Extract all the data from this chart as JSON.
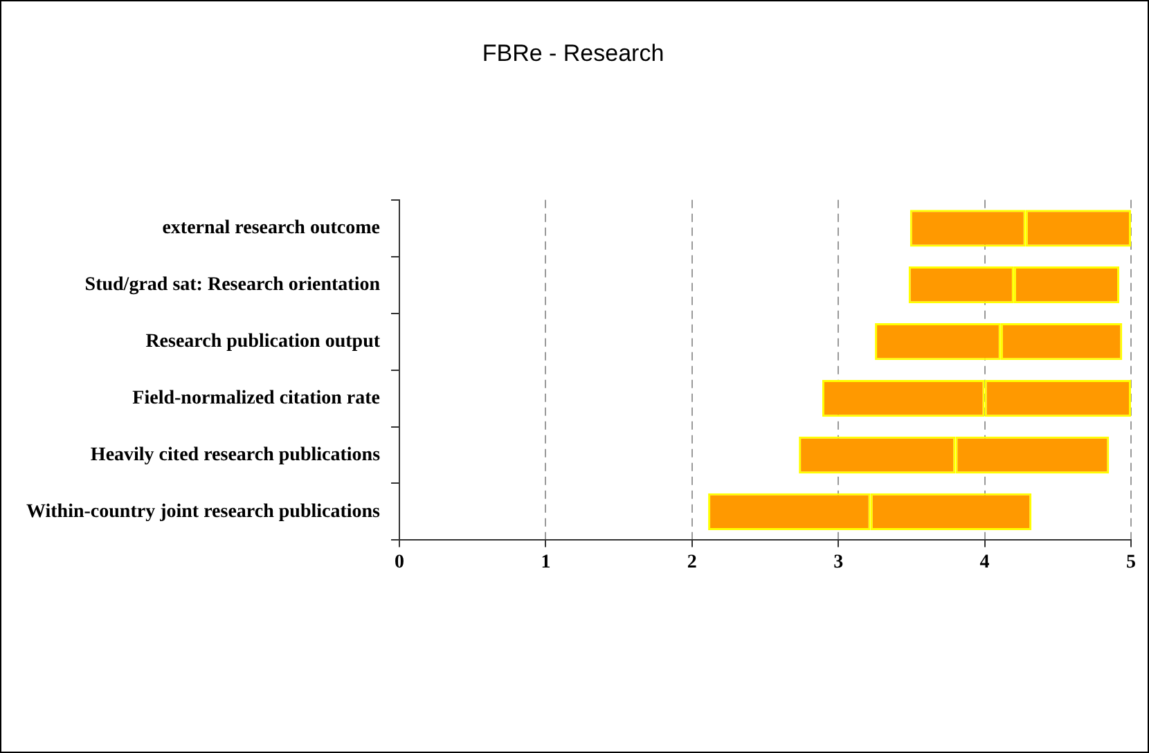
{
  "chart_data": {
    "type": "box",
    "orientation": "horizontal",
    "title": "FBRe - Research",
    "categories": [
      "external research outcome",
      "Stud/grad sat: Research orientation",
      "Research publication output",
      "Field-normalized citation rate",
      "Heavily cited research publications",
      "Within-country joint research publications"
    ],
    "series": [
      {
        "color": "#ffff00",
        "boxes": [
          {
            "low": 3.49,
            "q1": 3.49,
            "median": 4.28,
            "q3": 5.0,
            "high": 5.0
          },
          {
            "low": 3.48,
            "q1": 3.48,
            "median": 4.2,
            "q3": 4.92,
            "high": 4.92
          },
          {
            "low": 3.25,
            "q1": 3.25,
            "median": 4.11,
            "q3": 4.94,
            "high": 4.94
          },
          {
            "low": 2.89,
            "q1": 2.89,
            "median": 4.0,
            "q3": 5.0,
            "high": 5.0
          },
          {
            "low": 2.73,
            "q1": 2.73,
            "median": 3.8,
            "q3": 4.85,
            "high": 4.85
          },
          {
            "low": 2.11,
            "q1": 2.11,
            "median": 3.22,
            "q3": 4.32,
            "high": 4.32
          }
        ]
      }
    ],
    "xlim": [
      0,
      5
    ],
    "xticks": [
      0,
      1,
      2,
      3,
      4,
      5
    ],
    "grid": "x",
    "legend": false
  }
}
